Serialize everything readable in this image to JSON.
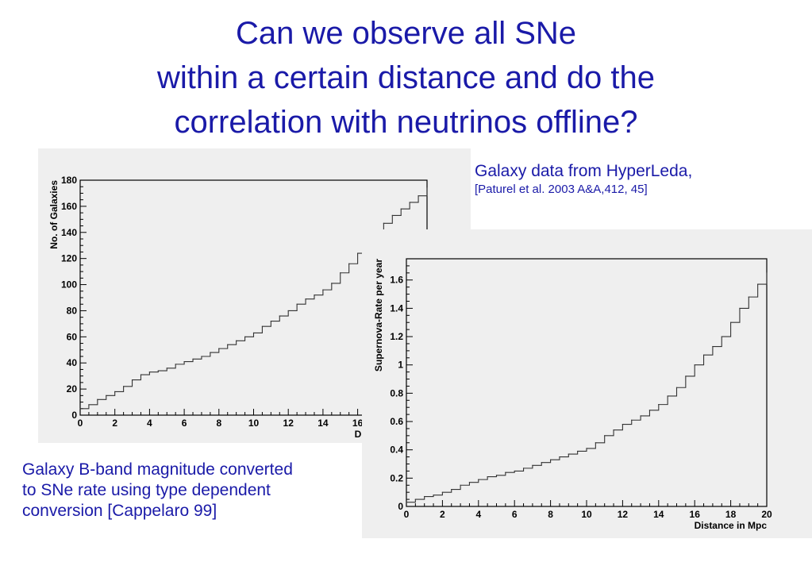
{
  "title": {
    "lines": [
      "Can we observe all SNe",
      "within a certain distance and do the",
      "correlation with neutrinos offline?"
    ]
  },
  "notes": {
    "source_line1": "Galaxy data from HyperLeda,",
    "source_line2": "[Paturel et al. 2003 A&A,412, 45]",
    "conversion_lines": [
      "Galaxy B-band magnitude converted",
      "to SNe rate using type dependent",
      "conversion [Cappelaro 99]"
    ]
  },
  "colors": {
    "title_text": "#1a1aa8",
    "panel_bg": "#efefef",
    "plot_line": "#333333"
  },
  "chart_data": [
    {
      "type": "line",
      "step": true,
      "title": "",
      "xlabel": "Distance in Mpc",
      "ylabel": "No. of Galaxies",
      "xlim": [
        0,
        20
      ],
      "ylim": [
        0,
        180
      ],
      "xticks": [
        "0",
        "2",
        "4",
        "6",
        "8",
        "10",
        "12",
        "14",
        "16"
      ],
      "yticks": [
        "0",
        "20",
        "40",
        "60",
        "80",
        "100",
        "120",
        "140",
        "160",
        "180"
      ],
      "x": [
        0,
        0.5,
        1,
        1.5,
        2,
        2.5,
        3,
        3.5,
        4,
        4.5,
        5,
        5.5,
        6,
        6.5,
        7,
        7.5,
        8,
        8.5,
        9,
        9.5,
        10,
        10.5,
        11,
        11.5,
        12,
        12.5,
        13,
        13.5,
        14,
        14.5,
        15,
        15.5,
        16,
        16.5,
        17,
        17.5,
        18,
        18.5,
        19,
        19.5,
        20
      ],
      "values": [
        5,
        8,
        12,
        15,
        18,
        22,
        27,
        31,
        33,
        34,
        36,
        39,
        41,
        43,
        45,
        48,
        51,
        54,
        57,
        60,
        63,
        68,
        72,
        76,
        80,
        85,
        89,
        92,
        96,
        101,
        109,
        116,
        124,
        132,
        140,
        147,
        153,
        158,
        163,
        168,
        174
      ],
      "grid": false
    },
    {
      "type": "line",
      "step": true,
      "title": "",
      "xlabel": "Distance in Mpc",
      "ylabel": "Supernova-Rate per year",
      "xlim": [
        0,
        20
      ],
      "ylim": [
        0,
        1.75
      ],
      "xticks": [
        "0",
        "2",
        "4",
        "6",
        "8",
        "10",
        "12",
        "14",
        "16",
        "18",
        "20"
      ],
      "yticks": [
        "0",
        "0.2",
        "0.4",
        "0.6",
        "0.8",
        "1",
        "1.2",
        "1.4",
        "1.6"
      ],
      "x": [
        0,
        0.5,
        1,
        1.5,
        2,
        2.5,
        3,
        3.5,
        4,
        4.5,
        5,
        5.5,
        6,
        6.5,
        7,
        7.5,
        8,
        8.5,
        9,
        9.5,
        10,
        10.5,
        11,
        11.5,
        12,
        12.5,
        13,
        13.5,
        14,
        14.5,
        15,
        15.5,
        16,
        16.5,
        17,
        17.5,
        18,
        18.5,
        19,
        19.5,
        20
      ],
      "values": [
        0.03,
        0.05,
        0.07,
        0.08,
        0.1,
        0.12,
        0.15,
        0.17,
        0.19,
        0.21,
        0.22,
        0.24,
        0.25,
        0.27,
        0.29,
        0.31,
        0.33,
        0.35,
        0.37,
        0.39,
        0.41,
        0.45,
        0.5,
        0.54,
        0.58,
        0.61,
        0.64,
        0.68,
        0.72,
        0.78,
        0.84,
        0.92,
        1.0,
        1.07,
        1.13,
        1.2,
        1.3,
        1.4,
        1.48,
        1.57,
        1.65
      ],
      "grid": false
    }
  ]
}
